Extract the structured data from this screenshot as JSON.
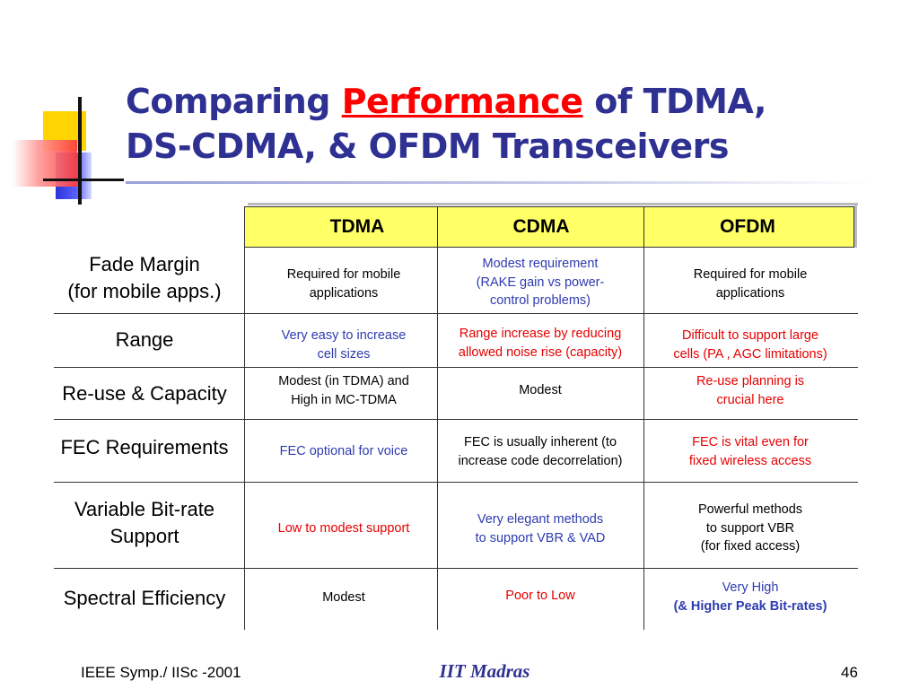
{
  "title": {
    "part1": "Comparing ",
    "highlight": "Performance",
    "part2": " of TDMA,",
    "line2": "DS-CDMA, & OFDM Transceivers"
  },
  "table": {
    "columns": [
      "TDMA",
      "CDMA",
      "OFDM"
    ],
    "rows": [
      {
        "label": [
          "Fade Margin",
          "(for mobile apps.)"
        ],
        "cells": [
          {
            "lines": [
              "Required for mobile",
              "applications"
            ],
            "color": "#000000"
          },
          {
            "lines": [
              "Modest requirement",
              "(RAKE gain vs power-",
              "control problems)"
            ],
            "color": "#2e3bb0"
          },
          {
            "lines": [
              "Required for mobile",
              "applications"
            ],
            "color": "#000000"
          }
        ]
      },
      {
        "label": [
          "Range"
        ],
        "cells": [
          {
            "lines": [
              "Very easy to increase",
              "cell sizes"
            ],
            "color": "#2e3bb0"
          },
          {
            "lines": [
              "Range increase by reducing",
              "allowed noise rise (capacity)"
            ],
            "color": "#e60000"
          },
          {
            "lines": [
              "Difficult to support large",
              "cells (PA , AGC limitations)"
            ],
            "color": "#e60000"
          }
        ]
      },
      {
        "label": [
          "Re-use & Capacity"
        ],
        "cells": [
          {
            "lines": [
              "Modest (in TDMA) and",
              "High in MC-TDMA"
            ],
            "color": "#000000"
          },
          {
            "lines": [
              "Modest"
            ],
            "color": "#000000"
          },
          {
            "lines": [
              "Re-use planning is",
              "crucial here"
            ],
            "color": "#e60000"
          }
        ]
      },
      {
        "label": [
          "FEC Requirements"
        ],
        "cells": [
          {
            "lines": [
              "FEC optional for voice"
            ],
            "color": "#2e3bb0"
          },
          {
            "lines": [
              "FEC is usually inherent (to",
              "increase code decorrelation)"
            ],
            "color": "#000000"
          },
          {
            "lines": [
              "FEC is vital even for",
              "fixed wireless access"
            ],
            "color": "#e60000"
          }
        ]
      },
      {
        "label": [
          "Variable Bit-rate",
          "Support"
        ],
        "cells": [
          {
            "lines": [
              "Low  to modest support"
            ],
            "color": "#e60000"
          },
          {
            "lines": [
              "Very elegant methods",
              "to support VBR & VAD"
            ],
            "color": "#2e3bb0"
          },
          {
            "lines": [
              "Powerful methods",
              "to support VBR",
              "(for fixed access)"
            ],
            "color": "#000000"
          }
        ]
      },
      {
        "label": [
          "Spectral Efficiency"
        ],
        "cells": [
          {
            "lines": [
              "Modest"
            ],
            "color": "#000000"
          },
          {
            "lines": [
              "Poor to Low"
            ],
            "color": "#e60000"
          },
          {
            "lines": [
              "Very High",
              "(& Higher Peak Bit-rates)"
            ],
            "color": "#2e3bb0"
          }
        ]
      }
    ]
  },
  "footer": {
    "left": "IEEE Symp./ IISc -2001",
    "center": "IIT Madras",
    "right": "46"
  },
  "colors": {
    "title": "#2e3192",
    "highlight": "#ff0000",
    "header_bg": "#ffff66"
  }
}
